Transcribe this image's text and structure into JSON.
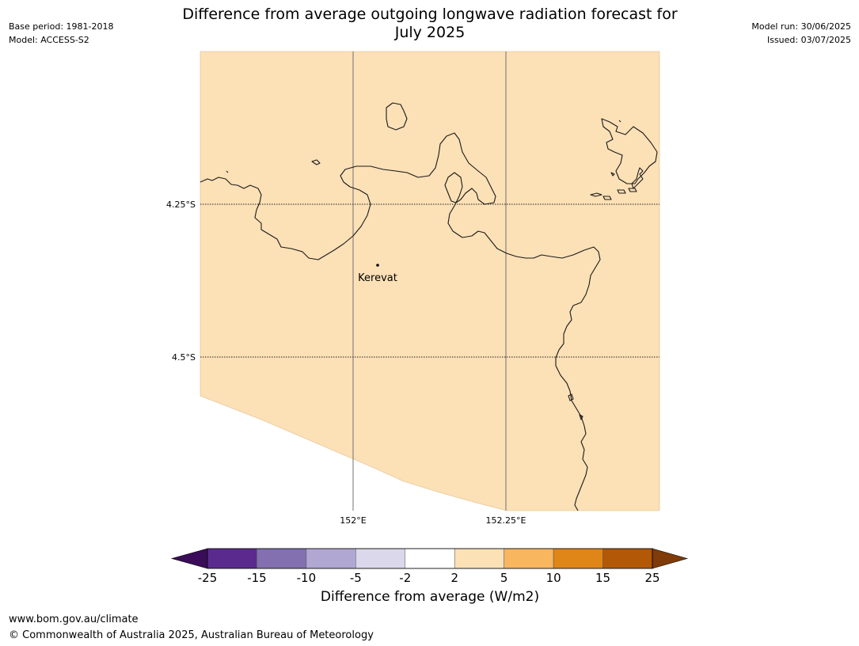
{
  "header": {
    "title_line1": "Difference from average outgoing longwave radiation forecast for",
    "title_line2": "July 2025",
    "base_period": "Base period: 1981-2018",
    "model": "Model: ACCESS-S2",
    "model_run": "Model run: 30/06/2025",
    "issued": "Issued: 03/07/2025"
  },
  "map": {
    "lat_labels": [
      "4.25°S",
      "4.5°S"
    ],
    "lon_labels": [
      "152°E",
      "152.25°E"
    ],
    "place": "Kerevat",
    "colors": {
      "land_fill": "#fce0b6",
      "coast": "#1a1a1a"
    }
  },
  "colorbar": {
    "title": "Difference from average (W/m2)",
    "ticks": [
      "-25",
      "-15",
      "-10",
      "-5",
      "-2",
      "2",
      "5",
      "10",
      "15",
      "25"
    ],
    "colors": [
      "#3a0c5a",
      "#5b2a8e",
      "#8270b0",
      "#b0a7d3",
      "#dad8ea",
      "#ffffff",
      "#fce0b6",
      "#f8b65f",
      "#e08517",
      "#b35806",
      "#7f3b08"
    ]
  },
  "footer": {
    "url": "www.bom.gov.au/climate",
    "copyright": "© Commonwealth of Australia 2025, Australian Bureau of Meteorology"
  }
}
